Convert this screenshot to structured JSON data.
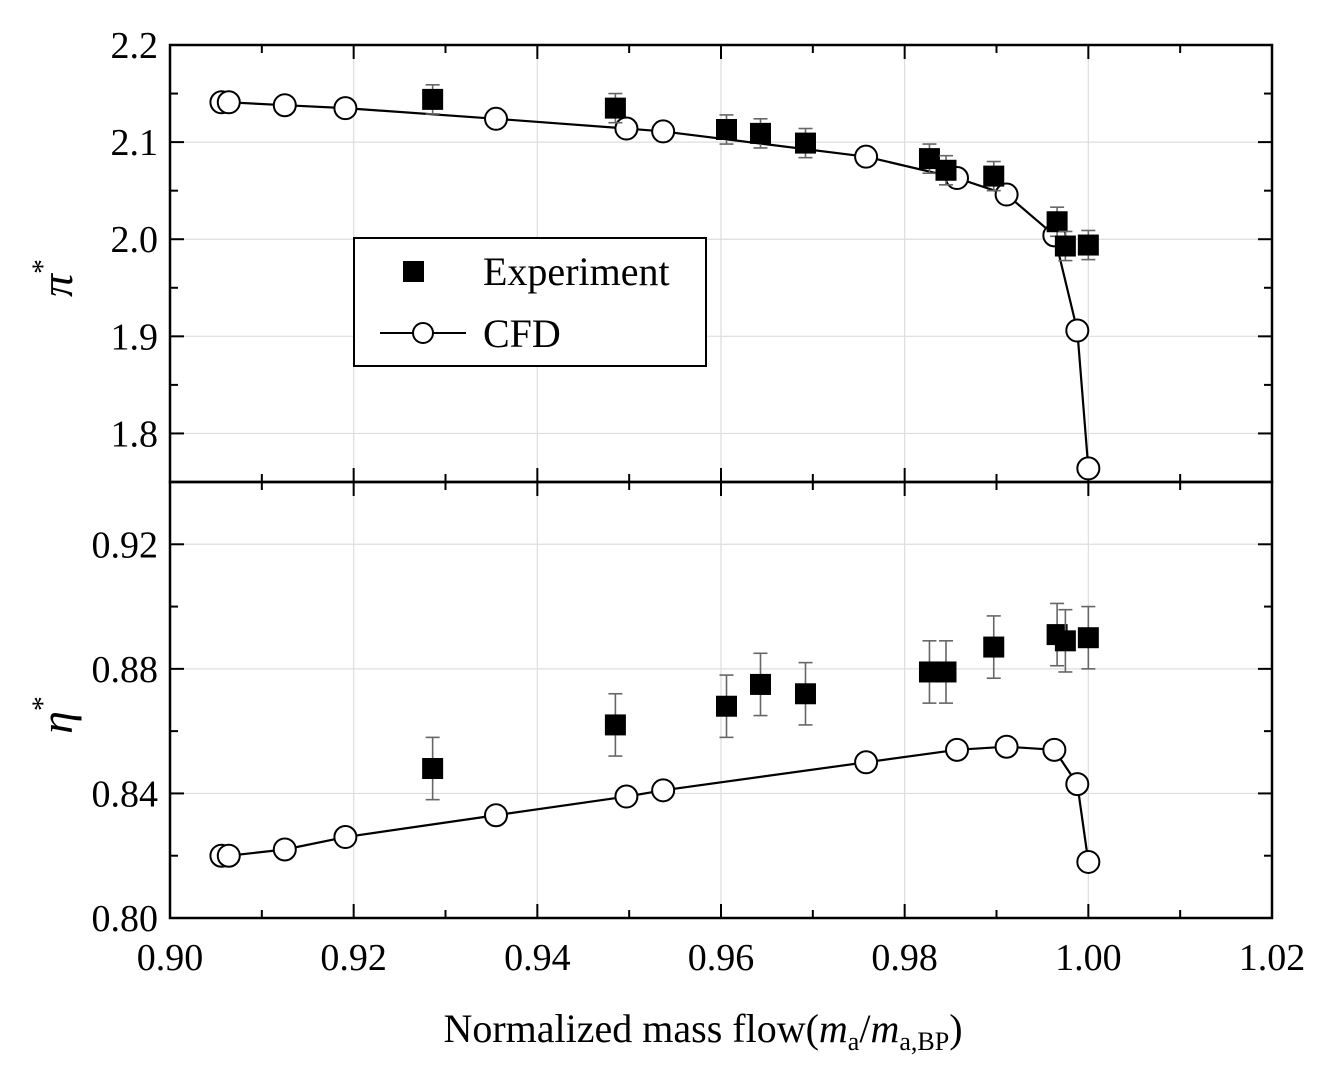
{
  "chart_data": {
    "type": "scatter",
    "layout": "two vertically stacked panels sharing the x axis",
    "xlabel": {
      "prefix": "Normalized mass flow(",
      "num": "m",
      "num_sub": "a",
      "slash": "/",
      "den": "m",
      "den_sub": "a,BP",
      "suffix": ")"
    },
    "xlim": [
      0.9,
      1.02
    ],
    "xticks": [
      "0.90",
      "0.92",
      "0.94",
      "0.96",
      "0.98",
      "1.00",
      "1.02"
    ],
    "legend": {
      "placement": "inside top panel, left-center",
      "entries": [
        {
          "label": "Experiment",
          "marker": "filled-square"
        },
        {
          "label": "CFD",
          "marker": "open-circle-line"
        }
      ]
    },
    "panels": [
      {
        "id": "pressure",
        "ylabel": "π",
        "ylabel_sup": "*",
        "ylim": [
          1.75,
          2.2
        ],
        "yticks": [
          "1.8",
          "1.9",
          "2.0",
          "2.1",
          "2.2"
        ],
        "yticks_values": [
          1.8,
          1.9,
          2.0,
          2.1,
          2.2
        ],
        "series": [
          {
            "name": "Experiment",
            "x": [
              0.9286,
              0.9485,
              0.9606,
              0.9643,
              0.9692,
              0.9827,
              0.9845,
              0.9897,
              0.9966,
              0.9975,
              1.0
            ],
            "y": [
              2.144,
              2.135,
              2.113,
              2.109,
              2.099,
              2.083,
              2.071,
              2.065,
              2.018,
              1.993,
              1.994
            ],
            "err": [
              0.015,
              0.015,
              0.015,
              0.015,
              0.015,
              0.015,
              0.015,
              0.015,
              0.015,
              0.015,
              0.015
            ]
          },
          {
            "name": "CFD",
            "x": [
              0.9056,
              0.9064,
              0.9125,
              0.9191,
              0.9355,
              0.9497,
              0.9537,
              0.9758,
              0.9857,
              0.9911,
              0.9963,
              0.9988,
              1.0
            ],
            "y": [
              2.141,
              2.141,
              2.138,
              2.135,
              2.124,
              2.114,
              2.111,
              2.085,
              2.063,
              2.046,
              2.004,
              1.906,
              1.764
            ]
          }
        ]
      },
      {
        "id": "efficiency",
        "ylabel": "η",
        "ylabel_sup": "*",
        "ylim": [
          0.8,
          0.94
        ],
        "yticks": [
          "0.80",
          "0.84",
          "0.88",
          "0.92"
        ],
        "yticks_values": [
          0.8,
          0.84,
          0.88,
          0.92
        ],
        "series": [
          {
            "name": "Experiment",
            "x": [
              0.9286,
              0.9485,
              0.9606,
              0.9643,
              0.9692,
              0.9827,
              0.9845,
              0.9897,
              0.9966,
              0.9975,
              1.0
            ],
            "y": [
              0.848,
              0.862,
              0.868,
              0.875,
              0.872,
              0.879,
              0.879,
              0.887,
              0.891,
              0.889,
              0.89
            ],
            "err": [
              0.01,
              0.01,
              0.01,
              0.01,
              0.01,
              0.01,
              0.01,
              0.01,
              0.01,
              0.01,
              0.01
            ]
          },
          {
            "name": "CFD",
            "x": [
              0.9056,
              0.9064,
              0.9125,
              0.9191,
              0.9355,
              0.9497,
              0.9537,
              0.9758,
              0.9857,
              0.9911,
              0.9963,
              0.9988,
              1.0
            ],
            "y": [
              0.82,
              0.82,
              0.822,
              0.826,
              0.833,
              0.839,
              0.841,
              0.85,
              0.854,
              0.855,
              0.854,
              0.843,
              0.818
            ]
          }
        ]
      }
    ]
  }
}
